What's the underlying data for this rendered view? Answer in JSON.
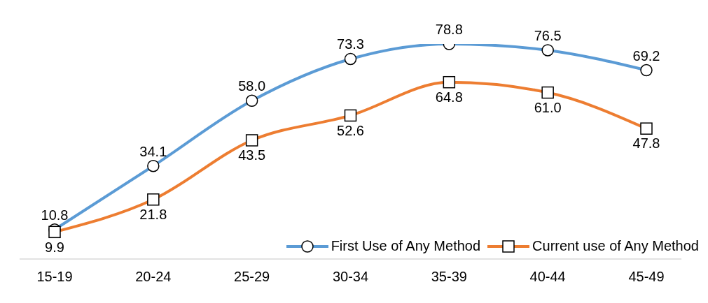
{
  "chart_data": {
    "type": "line",
    "categories": [
      "15-19",
      "20-24",
      "25-29",
      "30-34",
      "35-39",
      "40-44",
      "45-49"
    ],
    "series": [
      {
        "name": "First Use of Any Method",
        "color": "#5b9bd5",
        "marker": "circle",
        "values": [
          10.8,
          34.1,
          58.0,
          73.3,
          78.8,
          76.5,
          69.2
        ],
        "value_labels": [
          "10.8",
          "34.1",
          "58.0",
          "73.3",
          "78.8",
          "76.5",
          "69.2"
        ]
      },
      {
        "name": "Current use of Any Method",
        "color": "#ed7d31",
        "marker": "square",
        "values": [
          9.9,
          21.8,
          43.5,
          52.6,
          64.8,
          61.0,
          47.8
        ],
        "value_labels": [
          "9.9",
          "21.8",
          "43.5",
          "52.6",
          "64.8",
          "61.0",
          "47.8"
        ]
      }
    ],
    "legend": "bottom right"
  }
}
